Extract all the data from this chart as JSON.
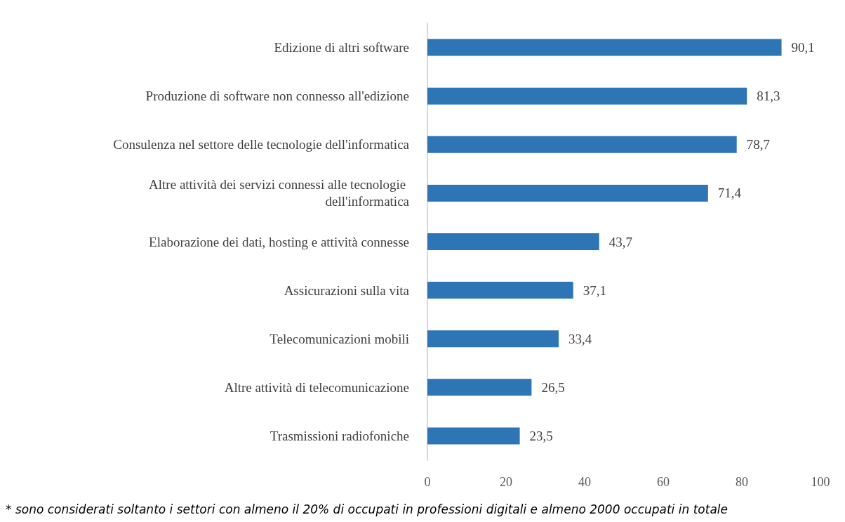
{
  "chart_data": {
    "type": "bar",
    "orientation": "horizontal",
    "categories": [
      "Edizione di altri software",
      "Produzione di software non connesso all'edizione",
      "Consulenza nel settore delle tecnologie dell'informatica",
      "Altre attività dei servizi connessi alle tecnologie dell'informatica",
      "Elaborazione dei dati, hosting e attività connesse",
      "Assicurazioni sulla vita",
      "Telecomunicazioni mobili",
      "Altre attività di telecomunicazione",
      "Trasmissioni radiofoniche"
    ],
    "values": [
      90.1,
      81.3,
      78.7,
      71.4,
      43.7,
      37.1,
      33.4,
      26.5,
      23.5
    ],
    "value_labels": [
      "90,1",
      "81,3",
      "78,7",
      "71,4",
      "43,7",
      "37,1",
      "33,4",
      "26,5",
      "23,5"
    ],
    "color": "#2e75b6",
    "xlim": [
      0,
      100
    ],
    "xticks": [
      0,
      20,
      40,
      60,
      80,
      100
    ],
    "grid": false,
    "annotations": [
      "* sono considerati soltanto i settori con almeno il 20% di occupati in professioni digitali e almeno 2000 occupati in totale"
    ]
  }
}
